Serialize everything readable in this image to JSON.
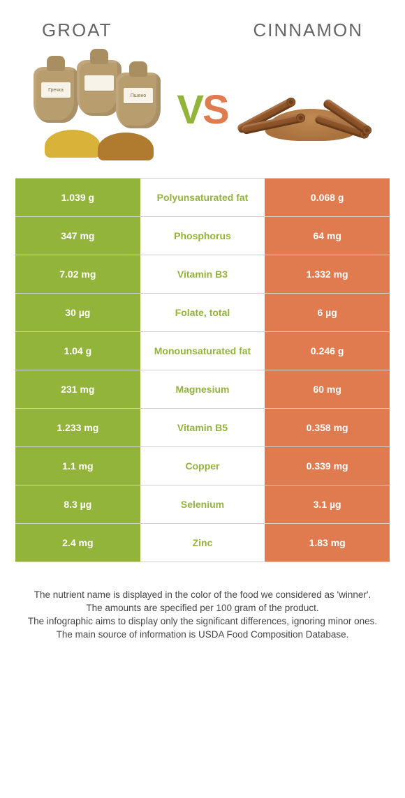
{
  "colors": {
    "left": "#93b43a",
    "right": "#e07a4f",
    "border": "#cfcfcf",
    "text": "#444444"
  },
  "header": {
    "left_title": "Groat",
    "right_title": "Cinnamon",
    "vs_v": "V",
    "vs_s": "S"
  },
  "rows": [
    {
      "left": "1.039 g",
      "label": "Polyunsaturated fat",
      "right": "0.068 g",
      "winner": "left"
    },
    {
      "left": "347 mg",
      "label": "Phosphorus",
      "right": "64 mg",
      "winner": "left"
    },
    {
      "left": "7.02 mg",
      "label": "Vitamin B3",
      "right": "1.332 mg",
      "winner": "left"
    },
    {
      "left": "30 µg",
      "label": "Folate, total",
      "right": "6 µg",
      "winner": "left"
    },
    {
      "left": "1.04 g",
      "label": "Monounsaturated fat",
      "right": "0.246 g",
      "winner": "left"
    },
    {
      "left": "231 mg",
      "label": "Magnesium",
      "right": "60 mg",
      "winner": "left"
    },
    {
      "left": "1.233 mg",
      "label": "Vitamin B5",
      "right": "0.358 mg",
      "winner": "left"
    },
    {
      "left": "1.1 mg",
      "label": "Copper",
      "right": "0.339 mg",
      "winner": "left"
    },
    {
      "left": "8.3 µg",
      "label": "Selenium",
      "right": "3.1 µg",
      "winner": "left"
    },
    {
      "left": "2.4 mg",
      "label": "Zinc",
      "right": "1.83 mg",
      "winner": "left"
    }
  ],
  "footer": {
    "l1": "The nutrient name is displayed in the color of the food we considered as 'winner'.",
    "l2": "The amounts are specified per 100 gram of the product.",
    "l3": "The infographic aims to display only the significant differences, ignoring minor ones.",
    "l4": "The main source of information is USDA Food Composition Database."
  },
  "illustration": {
    "groat": {
      "sack_color": "#b89d6f",
      "pile1_color": "#d9b23a",
      "pile2_color": "#b07a2f"
    },
    "cinnamon": {
      "powder_color": "#b7824c",
      "stick_color": "#8a5228"
    }
  }
}
